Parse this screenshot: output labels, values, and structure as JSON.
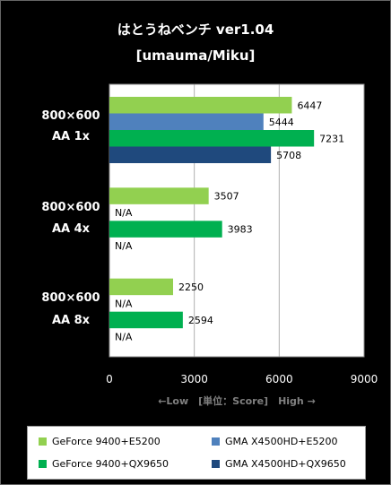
{
  "title": "はとうねベンチ ver1.04",
  "subtitle": "[umauma/Miku]",
  "groups": [
    {
      "line1": "800×600",
      "line2": "AA 1x"
    },
    {
      "line1": "800×600",
      "line2": "AA 4x"
    },
    {
      "line1": "800×600",
      "line2": "AA 8x"
    }
  ],
  "xaxis_caption": "←Low　[単位：Score]　High →",
  "legend": [
    {
      "label": "GeForce 9400+E5200",
      "color": "#92d050"
    },
    {
      "label": "GMA X4500HD+E5200",
      "color": "#4f81bd"
    },
    {
      "label": "GeForce 9400+QX9650",
      "color": "#00b050"
    },
    {
      "label": "GMA X4500HD+QX9650",
      "color": "#1f497d"
    }
  ],
  "chart_data": {
    "type": "bar",
    "orientation": "horizontal",
    "categories": [
      "800×600 AA 1x",
      "800×600 AA 4x",
      "800×600 AA 8x"
    ],
    "series": [
      {
        "name": "GeForce 9400+E5200",
        "values": [
          6447,
          3507,
          2250
        ],
        "labels": [
          "6447",
          "3507",
          "2250"
        ],
        "color": "#92d050"
      },
      {
        "name": "GMA X4500HD+E5200",
        "values": [
          5444,
          null,
          null
        ],
        "labels": [
          "5444",
          "N/A",
          "N/A"
        ],
        "color": "#4f81bd"
      },
      {
        "name": "GeForce 9400+QX9650",
        "values": [
          7231,
          3983,
          2594
        ],
        "labels": [
          "7231",
          "3983",
          "2594"
        ],
        "color": "#00b050"
      },
      {
        "name": "GMA X4500HD+QX9650",
        "values": [
          5708,
          null,
          null
        ],
        "labels": [
          "5708",
          "N/A",
          "N/A"
        ],
        "color": "#1f497d"
      }
    ],
    "xlim": [
      0,
      9000
    ],
    "xticks": [
      "0",
      "3000",
      "6000",
      "9000"
    ],
    "grid": true,
    "legend_position": "bottom"
  }
}
